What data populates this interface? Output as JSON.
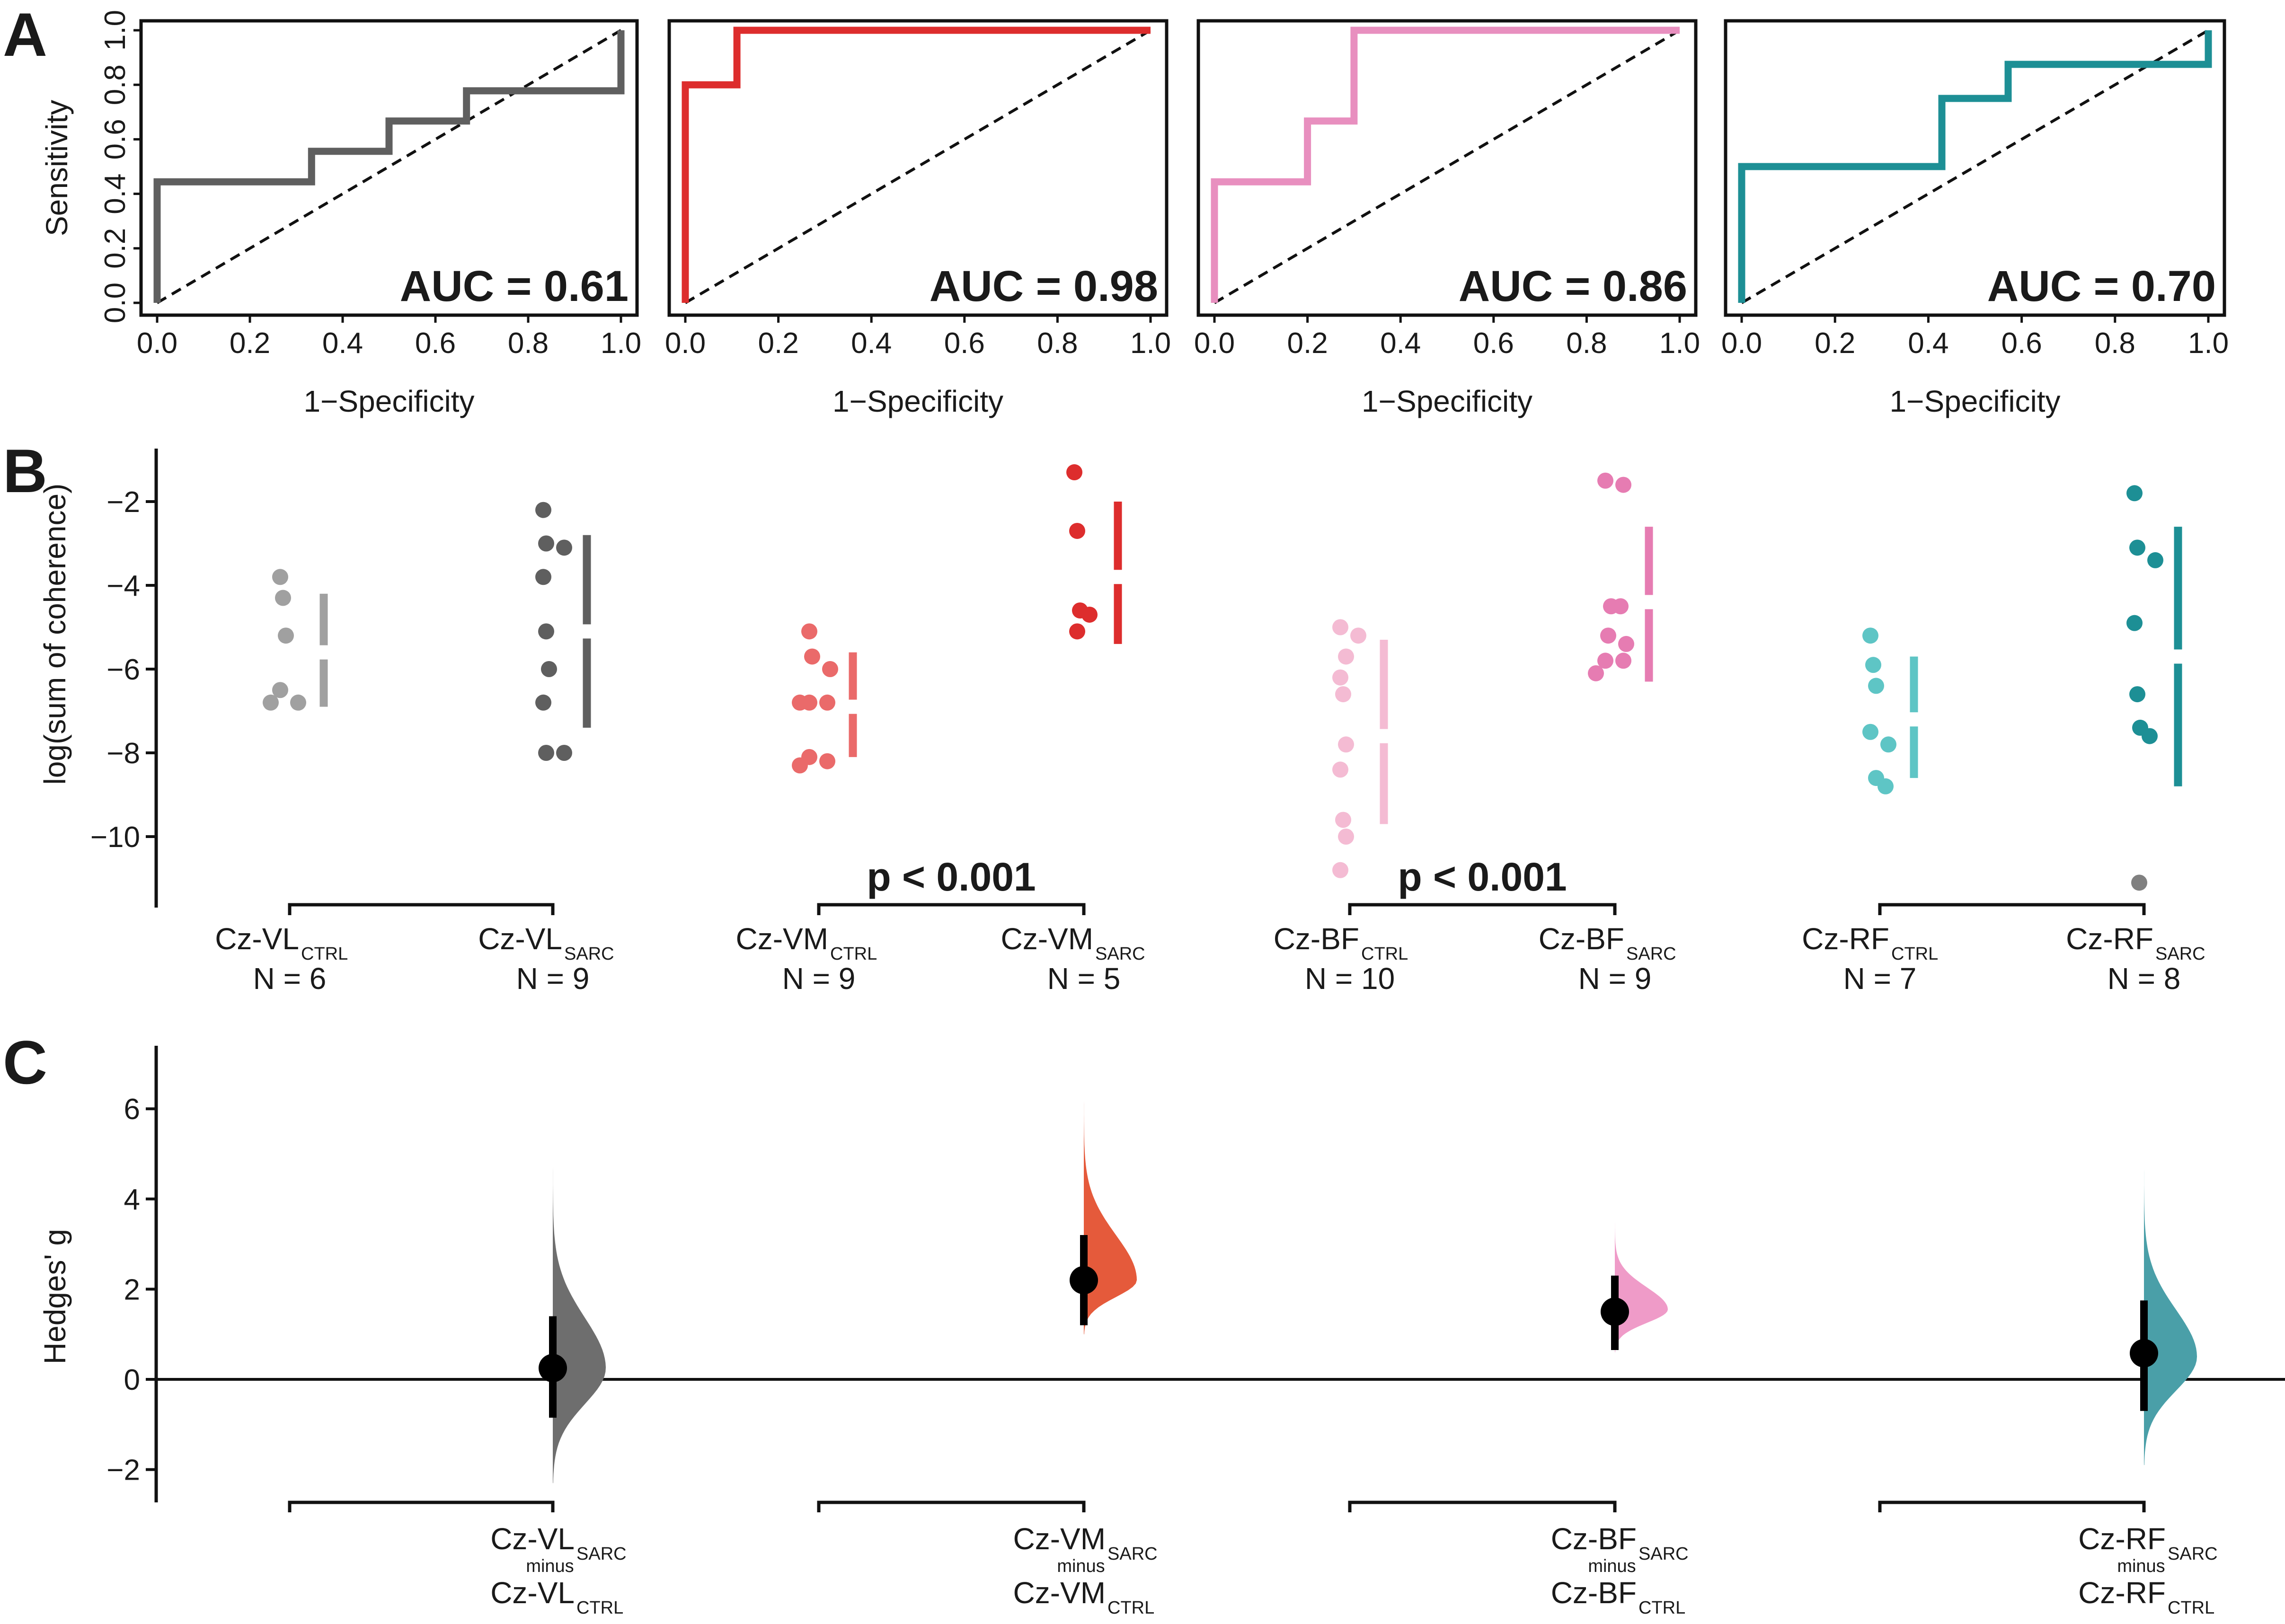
{
  "panels": {
    "a": "A",
    "b": "B",
    "c": "C"
  },
  "colors": {
    "vl_ctrl": "#a0a0a0",
    "vl_sarc": "#5f5f5f",
    "vm_ctrl": "#ea6a6a",
    "vm_sarc": "#dd2d2d",
    "bf_ctrl": "#f4bbd3",
    "bf_sarc": "#e67cb2",
    "rf_ctrl": "#5ec5c5",
    "rf_sarc": "#1d8f95",
    "outlier": "#808080"
  },
  "chart_data": [
    {
      "id": "roc_vl",
      "type": "line",
      "color": "#5f5f5f",
      "xlabel": "1−Specificity",
      "ylabel": "Sensitivity",
      "auc_label": "AUC = 0.61",
      "xlim": [
        0,
        1
      ],
      "ylim": [
        0,
        1
      ],
      "x_ticks": [
        "0.0",
        "0.2",
        "0.4",
        "0.6",
        "0.8",
        "1.0"
      ],
      "y_ticks": [
        "0.0",
        "0.2",
        "0.4",
        "0.6",
        "0.8",
        "1.0"
      ],
      "points": [
        [
          0,
          0
        ],
        [
          0,
          0.444
        ],
        [
          0.333,
          0.444
        ],
        [
          0.333,
          0.556
        ],
        [
          0.5,
          0.556
        ],
        [
          0.5,
          0.667
        ],
        [
          0.667,
          0.667
        ],
        [
          0.667,
          0.778
        ],
        [
          1,
          0.778
        ],
        [
          1,
          1
        ]
      ],
      "diagonal": true
    },
    {
      "id": "roc_vm",
      "type": "line",
      "color": "#dd2d2d",
      "xlabel": "1−Specificity",
      "auc_label": "AUC = 0.98",
      "xlim": [
        0,
        1
      ],
      "ylim": [
        0,
        1
      ],
      "x_ticks": [
        "0.0",
        "0.2",
        "0.4",
        "0.6",
        "0.8",
        "1.0"
      ],
      "points": [
        [
          0,
          0
        ],
        [
          0,
          0.8
        ],
        [
          0.111,
          0.8
        ],
        [
          0.111,
          1
        ],
        [
          1,
          1
        ]
      ],
      "diagonal": true
    },
    {
      "id": "roc_bf",
      "type": "line",
      "color": "#e88fbf",
      "xlabel": "1−Specificity",
      "auc_label": "AUC = 0.86",
      "xlim": [
        0,
        1
      ],
      "ylim": [
        0,
        1
      ],
      "x_ticks": [
        "0.0",
        "0.2",
        "0.4",
        "0.6",
        "0.8",
        "1.0"
      ],
      "points": [
        [
          0,
          0
        ],
        [
          0,
          0.444
        ],
        [
          0.2,
          0.444
        ],
        [
          0.2,
          0.667
        ],
        [
          0.3,
          0.667
        ],
        [
          0.3,
          1
        ],
        [
          1,
          1
        ]
      ],
      "diagonal": true
    },
    {
      "id": "roc_rf",
      "type": "line",
      "color": "#1d8f95",
      "xlabel": "1−Specificity",
      "auc_label": "AUC = 0.70",
      "xlim": [
        0,
        1
      ],
      "ylim": [
        0,
        1
      ],
      "x_ticks": [
        "0.0",
        "0.2",
        "0.4",
        "0.6",
        "0.8",
        "1.0"
      ],
      "points": [
        [
          0,
          0
        ],
        [
          0,
          0.5
        ],
        [
          0.429,
          0.5
        ],
        [
          0.429,
          0.75
        ],
        [
          0.571,
          0.75
        ],
        [
          0.571,
          0.875
        ],
        [
          1,
          0.875
        ],
        [
          1,
          1
        ]
      ],
      "diagonal": true
    },
    {
      "id": "swarm",
      "type": "scatter",
      "ylabel": "log(sum of coherence)",
      "ylim": [
        -11.8,
        -1.0
      ],
      "y_ticks": [
        -2,
        -4,
        -6,
        -8,
        -10
      ],
      "groups": [
        {
          "key": "vl_ctrl",
          "name": "Cz-VL",
          "subscript": "CTRL",
          "n_label": "N = 6",
          "values": [
            -3.8,
            -4.3,
            -5.2,
            -6.5,
            -6.8,
            -6.8
          ],
          "mean": -5.6,
          "sd_low": -6.9,
          "sd_high": -4.2,
          "outliers": []
        },
        {
          "key": "vl_sarc",
          "name": "Cz-VL",
          "subscript": "SARC",
          "n_label": "N = 9",
          "values": [
            -2.2,
            -3.0,
            -3.1,
            -3.8,
            -5.1,
            -6.0,
            -6.8,
            -8.0,
            -8.0
          ],
          "mean": -5.1,
          "sd_low": -7.4,
          "sd_high": -2.8,
          "outliers": []
        },
        {
          "key": "vm_ctrl",
          "name": "Cz-VM",
          "subscript": "CTRL",
          "n_label": "N = 9",
          "values": [
            -5.1,
            -5.7,
            -6.0,
            -6.8,
            -6.8,
            -6.8,
            -8.1,
            -8.2,
            -8.3
          ],
          "mean": -6.9,
          "sd_low": -8.1,
          "sd_high": -5.6,
          "outliers": []
        },
        {
          "key": "vm_sarc",
          "name": "Cz-VM",
          "subscript": "SARC",
          "n_label": "N = 5",
          "values": [
            -1.3,
            -2.7,
            -4.6,
            -4.7,
            -5.1
          ],
          "mean": -3.8,
          "sd_low": -5.4,
          "sd_high": -2.0,
          "outliers": []
        },
        {
          "key": "bf_ctrl",
          "name": "Cz-BF",
          "subscript": "CTRL",
          "n_label": "N = 10",
          "values": [
            -5.0,
            -5.2,
            -5.7,
            -6.2,
            -6.6,
            -7.8,
            -8.4,
            -9.6,
            -10.0,
            -10.8
          ],
          "mean": -7.6,
          "sd_low": -9.7,
          "sd_high": -5.3,
          "outliers": []
        },
        {
          "key": "bf_sarc",
          "name": "Cz-BF",
          "subscript": "SARC",
          "n_label": "N = 9",
          "values": [
            -1.5,
            -1.6,
            -4.5,
            -4.5,
            -5.2,
            -5.4,
            -5.8,
            -5.8,
            -6.1
          ],
          "mean": -4.4,
          "sd_low": -6.3,
          "sd_high": -2.6,
          "outliers": []
        },
        {
          "key": "rf_ctrl",
          "name": "Cz-RF",
          "subscript": "CTRL",
          "n_label": "N = 7",
          "values": [
            -5.2,
            -5.9,
            -6.4,
            -7.5,
            -7.8,
            -8.6,
            -8.8
          ],
          "mean": -7.2,
          "sd_low": -8.6,
          "sd_high": -5.7,
          "outliers": []
        },
        {
          "key": "rf_sarc",
          "name": "Cz-RF",
          "subscript": "SARC",
          "n_label": "N = 8",
          "values": [
            -1.8,
            -3.1,
            -3.4,
            -4.9,
            -6.6,
            -7.4,
            -7.6
          ],
          "mean": -5.7,
          "sd_low": -8.8,
          "sd_high": -2.6,
          "outliers": [
            -11.1
          ]
        }
      ],
      "pairs": [
        {
          "from": 0,
          "to": 1,
          "label": ""
        },
        {
          "from": 2,
          "to": 3,
          "label": "p < 0.001"
        },
        {
          "from": 4,
          "to": 5,
          "label": "p < 0.001"
        },
        {
          "from": 6,
          "to": 7,
          "label": ""
        }
      ]
    },
    {
      "id": "effect_sizes",
      "type": "scatter",
      "ylabel": "Hedges' g",
      "ylim": [
        -2.7,
        7.3
      ],
      "y_ticks": [
        6,
        4,
        2,
        0,
        -2
      ],
      "comparisons": [
        {
          "key": "vl",
          "color": "#6e6e6e",
          "estimate": 0.25,
          "ci": [
            -0.85,
            1.4
          ],
          "dist_range": [
            -2.3,
            5.6
          ],
          "dist_mode": 0.25,
          "top": "Cz-VL",
          "top_sub": "SARC",
          "minus": "minus",
          "bottom": "Cz-VL",
          "bottom_sub": "CTRL"
        },
        {
          "key": "vm",
          "color": "#e55a3b",
          "estimate": 2.2,
          "ci": [
            1.2,
            3.2
          ],
          "dist_range": [
            1.0,
            7.0
          ],
          "dist_mode": 2.2,
          "top": "Cz-VM",
          "top_sub": "SARC",
          "minus": "minus",
          "bottom": "Cz-VM",
          "bottom_sub": "CTRL"
        },
        {
          "key": "bf",
          "color": "#ef9bc8",
          "estimate": 1.5,
          "ci": [
            0.65,
            2.3
          ],
          "dist_range": [
            0.6,
            3.9
          ],
          "dist_mode": 1.55,
          "top": "Cz-BF",
          "top_sub": "SARC",
          "minus": "minus",
          "bottom": "Cz-BF",
          "bottom_sub": "CTRL"
        },
        {
          "key": "rf",
          "color": "#4a9fa8",
          "estimate": 0.58,
          "ci": [
            -0.7,
            1.75
          ],
          "dist_range": [
            -1.9,
            5.5
          ],
          "dist_mode": 0.5,
          "top": "Cz-RF",
          "top_sub": "SARC",
          "minus": "minus",
          "bottom": "Cz-RF",
          "bottom_sub": "CTRL"
        }
      ]
    }
  ]
}
